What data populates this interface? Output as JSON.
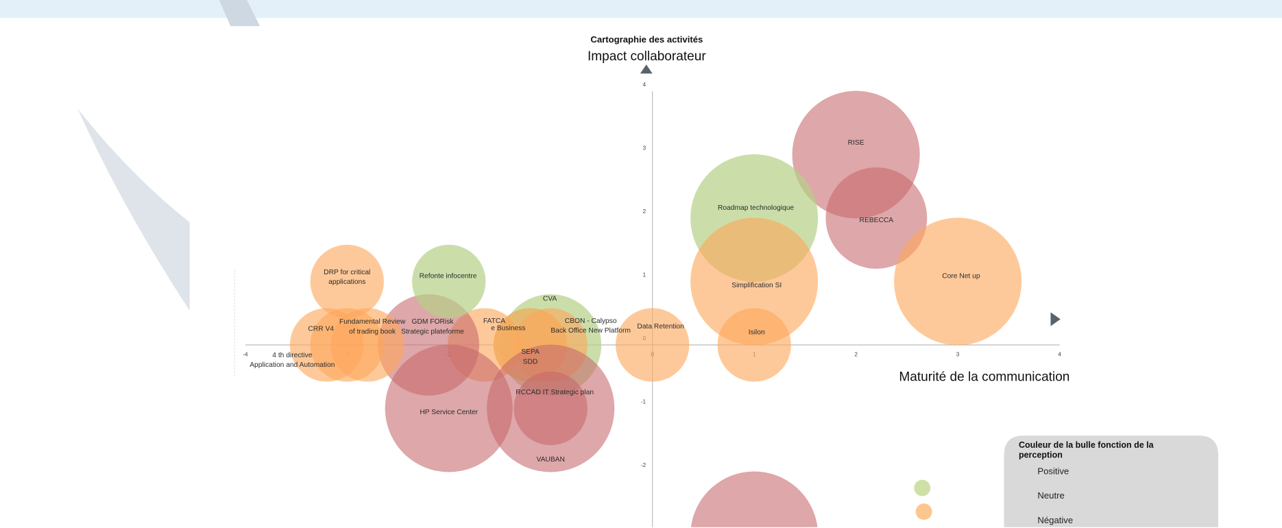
{
  "colors": {
    "positive": "#b9d38f",
    "neutral": "#fdae6b",
    "negative": "#cc7a7c",
    "banner": "#e3f0f9",
    "arrow": "#59636b"
  },
  "chart_data": {
    "type": "scatter",
    "subtype": "bubble",
    "title": "Cartographie des activités",
    "ylabel": "Impact collaborateur",
    "xlabel": "Maturité de la communication",
    "xlim": [
      -4,
      4
    ],
    "ylim": [
      -3,
      4
    ],
    "xticks": [
      "-4",
      "-3",
      "-2",
      "-1",
      "0",
      "1",
      "2",
      "3",
      "4"
    ],
    "yticks": [
      "4",
      "3",
      "2",
      "1",
      "0",
      "-1",
      "-2"
    ],
    "points": [
      {
        "label": [
          "RISE"
        ],
        "x": 2,
        "y": 3,
        "size": 3,
        "perception": "negative"
      },
      {
        "label": [
          "REBECCA"
        ],
        "x": 2.2,
        "y": 2,
        "size": 2,
        "perception": "negative"
      },
      {
        "label": [
          "Roadmap technologique"
        ],
        "x": 1,
        "y": 2,
        "size": 3,
        "perception": "positive"
      },
      {
        "label": [
          "Simplification SI"
        ],
        "x": 1,
        "y": 1,
        "size": 3,
        "perception": "neutral"
      },
      {
        "label": [
          "Core Net up"
        ],
        "x": 3,
        "y": 1,
        "size": 3,
        "perception": "neutral"
      },
      {
        "label": [
          "Isilon"
        ],
        "x": 1,
        "y": 0,
        "size": 1,
        "perception": "neutral"
      },
      {
        "label": [
          "Data Retention"
        ],
        "x": 0,
        "y": 0,
        "size": 1,
        "perception": "neutral"
      },
      {
        "label": [
          "CVA"
        ],
        "x": -1,
        "y": 0,
        "size": 2,
        "perception": "positive"
      },
      {
        "label": [
          "e Business"
        ],
        "x": -1.2,
        "y": 0,
        "size": 1,
        "perception": "positive"
      },
      {
        "label": [
          "CBON - Calypso",
          "Back Office New Platform"
        ],
        "x": -1,
        "y": 0,
        "size": 1,
        "perception": "neutral"
      },
      {
        "label": [
          "SEPA",
          "SDD"
        ],
        "x": -1.2,
        "y": 0,
        "size": 1,
        "perception": "neutral"
      },
      {
        "label": [
          "FATCA"
        ],
        "x": -1.65,
        "y": 0,
        "size": 1,
        "perception": "neutral"
      },
      {
        "label": [
          "GDM FORisk",
          "Strategic plateforme"
        ],
        "x": -2.2,
        "y": 0,
        "size": 2,
        "perception": "negative"
      },
      {
        "label": [
          "Refonte infocentre"
        ],
        "x": -2,
        "y": 1,
        "size": 1,
        "perception": "positive"
      },
      {
        "label": [
          "DRP for critical",
          "applications"
        ],
        "x": -3,
        "y": 1,
        "size": 1,
        "perception": "neutral"
      },
      {
        "label": [
          "CRR V4"
        ],
        "x": -3.2,
        "y": 0,
        "size": 1,
        "perception": "neutral"
      },
      {
        "label": [
          "Fundamental Review",
          "of trading book"
        ],
        "x": -2.8,
        "y": 0,
        "size": 1,
        "perception": "neutral"
      },
      {
        "label": [
          "4 th directive",
          "Application and Automation"
        ],
        "x": -3,
        "y": 0,
        "size": 1,
        "perception": "neutral"
      },
      {
        "label": [
          "HP Service Center"
        ],
        "x": -2,
        "y": -1,
        "size": 3,
        "perception": "negative"
      },
      {
        "label": [
          "VAUBAN"
        ],
        "x": -1,
        "y": -1,
        "size": 3,
        "perception": "negative"
      },
      {
        "label": [
          "RCCAD IT Strategic plan"
        ],
        "x": -1,
        "y": -1,
        "size": 1,
        "perception": "negative"
      },
      {
        "label": [
          ""
        ],
        "x": 1,
        "y": -3,
        "size": 3,
        "perception": "negative"
      }
    ],
    "legend": {
      "title": "Couleur de la bulle fonction de la perception",
      "items": [
        {
          "label": "Positive",
          "perception": "positive"
        },
        {
          "label": "Neutre",
          "perception": "neutral"
        },
        {
          "label": "Négative",
          "perception": "negative"
        }
      ],
      "placement": "bottom-right"
    }
  }
}
